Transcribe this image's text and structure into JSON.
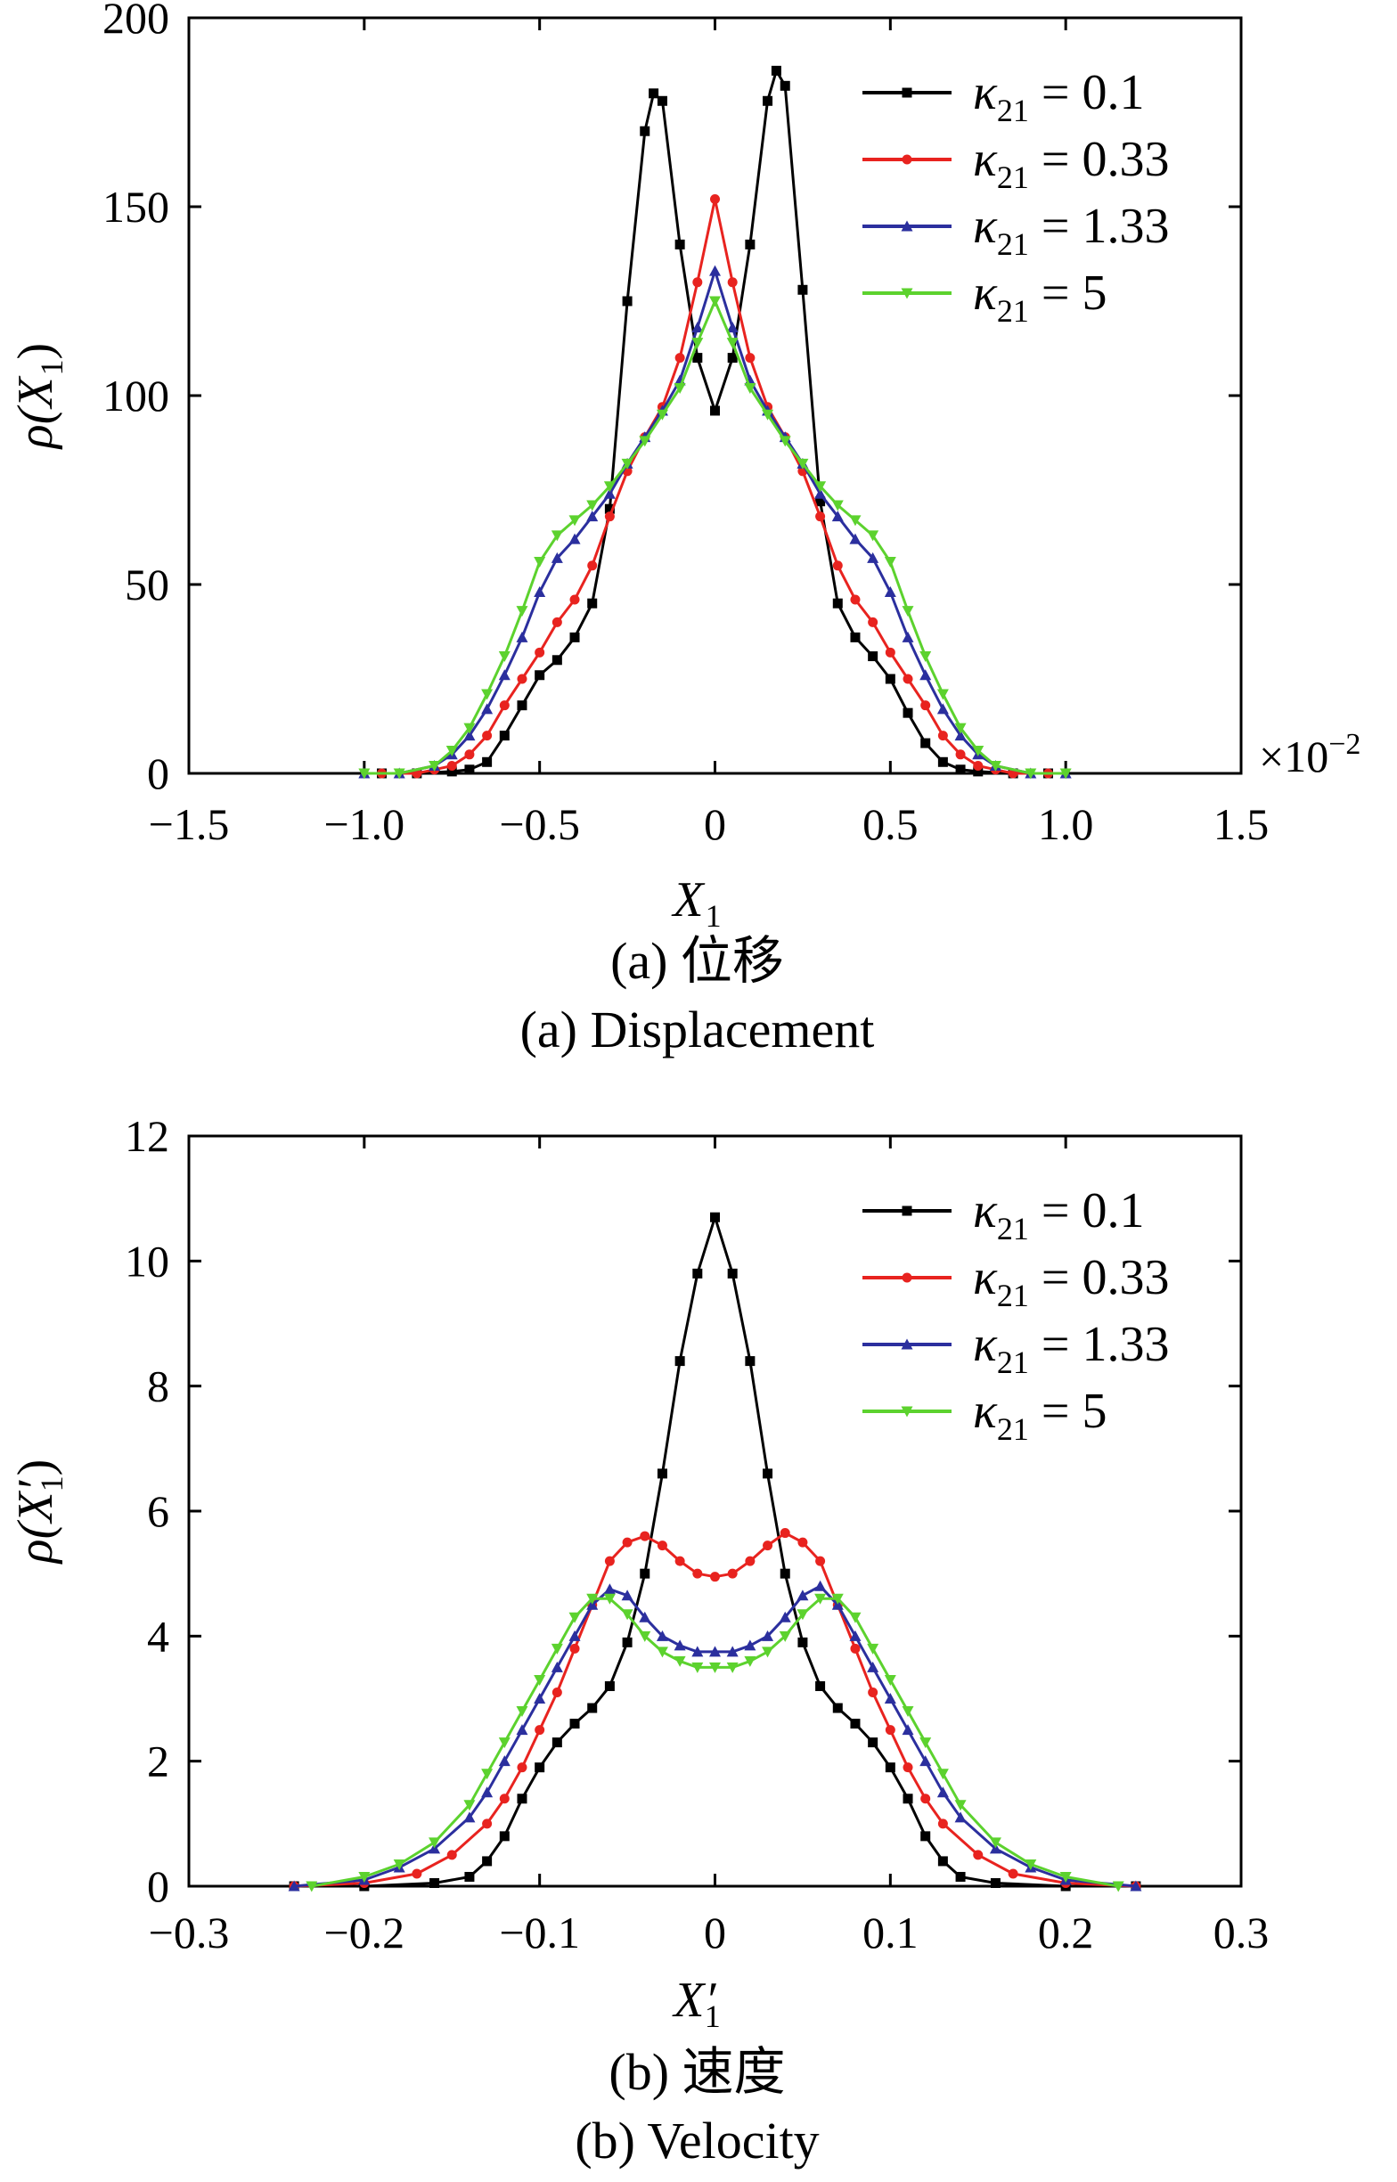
{
  "chart_data": [
    {
      "type": "line",
      "xlabel": "X",
      "xlabel_sub": "1",
      "xlabel_prime": false,
      "ylabel": "ρ(X",
      "ylabel_sub": "1",
      "ylabel_prime": false,
      "ylabel_close": ")",
      "xlim": [
        -1.5,
        1.5
      ],
      "ylim": [
        0,
        200
      ],
      "xticks": [
        -1.5,
        -1.0,
        -0.5,
        0,
        0.5,
        1.0,
        1.5
      ],
      "xtick_labels": [
        "−1.5",
        "−1.0",
        "−0.5",
        "0",
        "0.5",
        "1.0",
        "1.5"
      ],
      "yticks": [
        0,
        50,
        100,
        150,
        200
      ],
      "ytick_labels": [
        "0",
        "50",
        "100",
        "150",
        "200"
      ],
      "x_multiplier": "×10",
      "x_multiplier_exp": "−2",
      "legend_position": "top-right",
      "caption_cn": "(a)  位移",
      "caption_en": "(a)  Displacement",
      "series": [
        {
          "name": "κ",
          "name_sub": "21",
          "name_value": " = 0.1",
          "color": "#000000",
          "marker": "square",
          "x": [
            -0.95,
            -0.85,
            -0.75,
            -0.7,
            -0.65,
            -0.6,
            -0.55,
            -0.5,
            -0.45,
            -0.4,
            -0.35,
            -0.3,
            -0.25,
            -0.2,
            -0.175,
            -0.15,
            -0.1,
            -0.05,
            0,
            0.05,
            0.1,
            0.15,
            0.175,
            0.2,
            0.25,
            0.3,
            0.35,
            0.4,
            0.45,
            0.5,
            0.55,
            0.6,
            0.65,
            0.7,
            0.75,
            0.85,
            0.95
          ],
          "y": [
            0,
            0,
            0.5,
            1,
            3,
            10,
            18,
            26,
            30,
            36,
            45,
            70,
            125,
            170,
            180,
            178,
            140,
            110,
            96,
            110,
            140,
            178,
            186,
            182,
            128,
            72,
            45,
            36,
            31,
            25,
            16,
            8,
            3,
            1,
            0.5,
            0,
            0
          ]
        },
        {
          "name": "κ",
          "name_sub": "21",
          "name_value": " = 0.33",
          "color": "#e8231f",
          "marker": "circle",
          "x": [
            -0.95,
            -0.85,
            -0.8,
            -0.75,
            -0.7,
            -0.65,
            -0.6,
            -0.55,
            -0.5,
            -0.45,
            -0.4,
            -0.35,
            -0.3,
            -0.25,
            -0.2,
            -0.15,
            -0.1,
            -0.05,
            0,
            0.05,
            0.1,
            0.15,
            0.2,
            0.25,
            0.3,
            0.35,
            0.4,
            0.45,
            0.5,
            0.55,
            0.6,
            0.65,
            0.7,
            0.75,
            0.8,
            0.85,
            0.95
          ],
          "y": [
            0,
            0,
            1,
            2,
            5,
            10,
            18,
            25,
            32,
            40,
            46,
            55,
            68,
            80,
            89,
            97,
            110,
            130,
            152,
            130,
            110,
            97,
            89,
            80,
            68,
            55,
            46,
            40,
            32,
            25,
            18,
            10,
            5,
            2,
            1,
            0,
            0
          ]
        },
        {
          "name": "κ",
          "name_sub": "21",
          "name_value": " = 1.33",
          "color": "#2b2f9e",
          "marker": "triangle",
          "x": [
            -1.0,
            -0.9,
            -0.8,
            -0.75,
            -0.7,
            -0.65,
            -0.6,
            -0.55,
            -0.5,
            -0.45,
            -0.4,
            -0.35,
            -0.3,
            -0.25,
            -0.2,
            -0.15,
            -0.1,
            -0.05,
            0,
            0.05,
            0.1,
            0.15,
            0.2,
            0.25,
            0.3,
            0.35,
            0.4,
            0.45,
            0.5,
            0.55,
            0.6,
            0.65,
            0.7,
            0.75,
            0.8,
            0.9,
            1.0
          ],
          "y": [
            0,
            0,
            2,
            5,
            10,
            17,
            26,
            36,
            48,
            57,
            62,
            68,
            74,
            82,
            89,
            96,
            104,
            118,
            133,
            118,
            104,
            96,
            89,
            82,
            74,
            68,
            62,
            57,
            48,
            36,
            26,
            17,
            10,
            5,
            2,
            0,
            0
          ]
        },
        {
          "name": "κ",
          "name_sub": "21",
          "name_value": " = 5",
          "color": "#5cd22e",
          "marker": "triangle-down",
          "x": [
            -1.0,
            -0.9,
            -0.8,
            -0.75,
            -0.7,
            -0.65,
            -0.6,
            -0.55,
            -0.5,
            -0.45,
            -0.4,
            -0.35,
            -0.3,
            -0.25,
            -0.2,
            -0.15,
            -0.1,
            -0.05,
            0,
            0.05,
            0.1,
            0.15,
            0.2,
            0.25,
            0.3,
            0.35,
            0.4,
            0.45,
            0.5,
            0.55,
            0.6,
            0.65,
            0.7,
            0.75,
            0.8,
            0.9,
            1.0
          ],
          "y": [
            0,
            0,
            2,
            6,
            12,
            21,
            31,
            43,
            56,
            63,
            67,
            71,
            76,
            82,
            88,
            95,
            102,
            114,
            125,
            114,
            102,
            95,
            88,
            82,
            76,
            71,
            67,
            63,
            56,
            43,
            31,
            21,
            12,
            6,
            2,
            0,
            0
          ]
        }
      ]
    },
    {
      "type": "line",
      "xlabel": "X",
      "xlabel_sub": "1",
      "xlabel_prime": true,
      "ylabel": "ρ(X",
      "ylabel_sub": "1",
      "ylabel_prime": true,
      "ylabel_close": ")",
      "xlim": [
        -0.3,
        0.3
      ],
      "ylim": [
        0,
        12
      ],
      "xticks": [
        -0.3,
        -0.2,
        -0.1,
        0,
        0.1,
        0.2,
        0.3
      ],
      "xtick_labels": [
        "−0.3",
        "−0.2",
        "−0.1",
        "0",
        "0.1",
        "0.2",
        "0.3"
      ],
      "yticks": [
        0,
        2,
        4,
        6,
        8,
        10,
        12
      ],
      "ytick_labels": [
        "0",
        "2",
        "4",
        "6",
        "8",
        "10",
        "12"
      ],
      "x_multiplier": "",
      "x_multiplier_exp": "",
      "legend_position": "top-right",
      "caption_cn": "(b)  速度",
      "caption_en": "(b)  Velocity",
      "series": [
        {
          "name": "κ",
          "name_sub": "21",
          "name_value": " = 0.1",
          "color": "#000000",
          "marker": "square",
          "x": [
            -0.24,
            -0.2,
            -0.16,
            -0.14,
            -0.13,
            -0.12,
            -0.11,
            -0.1,
            -0.09,
            -0.08,
            -0.07,
            -0.06,
            -0.05,
            -0.04,
            -0.03,
            -0.02,
            -0.01,
            0,
            0.01,
            0.02,
            0.03,
            0.04,
            0.05,
            0.06,
            0.07,
            0.08,
            0.09,
            0.1,
            0.11,
            0.12,
            0.13,
            0.14,
            0.16,
            0.2,
            0.24
          ],
          "y": [
            0,
            0,
            0.05,
            0.15,
            0.4,
            0.8,
            1.4,
            1.9,
            2.3,
            2.6,
            2.85,
            3.2,
            3.9,
            5.0,
            6.6,
            8.4,
            9.8,
            10.7,
            9.8,
            8.4,
            6.6,
            5.0,
            3.9,
            3.2,
            2.85,
            2.6,
            2.3,
            1.9,
            1.4,
            0.8,
            0.4,
            0.15,
            0.05,
            0,
            0
          ]
        },
        {
          "name": "κ",
          "name_sub": "21",
          "name_value": " = 0.33",
          "color": "#e8231f",
          "marker": "circle",
          "x": [
            -0.24,
            -0.2,
            -0.17,
            -0.15,
            -0.13,
            -0.12,
            -0.11,
            -0.1,
            -0.09,
            -0.08,
            -0.07,
            -0.06,
            -0.05,
            -0.04,
            -0.03,
            -0.02,
            -0.01,
            0,
            0.01,
            0.02,
            0.03,
            0.04,
            0.05,
            0.06,
            0.07,
            0.08,
            0.09,
            0.1,
            0.11,
            0.12,
            0.13,
            0.15,
            0.17,
            0.2,
            0.24
          ],
          "y": [
            0,
            0.05,
            0.2,
            0.5,
            1.0,
            1.4,
            1.9,
            2.5,
            3.1,
            3.8,
            4.5,
            5.2,
            5.5,
            5.6,
            5.45,
            5.2,
            5.0,
            4.95,
            5.0,
            5.2,
            5.45,
            5.65,
            5.5,
            5.2,
            4.5,
            3.8,
            3.1,
            2.5,
            1.9,
            1.4,
            1.0,
            0.5,
            0.2,
            0.05,
            0
          ]
        },
        {
          "name": "κ",
          "name_sub": "21",
          "name_value": " = 1.33",
          "color": "#2b2f9e",
          "marker": "triangle",
          "x": [
            -0.24,
            -0.2,
            -0.18,
            -0.16,
            -0.14,
            -0.13,
            -0.12,
            -0.11,
            -0.1,
            -0.09,
            -0.08,
            -0.07,
            -0.06,
            -0.05,
            -0.04,
            -0.03,
            -0.02,
            -0.01,
            0,
            0.01,
            0.02,
            0.03,
            0.04,
            0.05,
            0.06,
            0.07,
            0.08,
            0.09,
            0.1,
            0.11,
            0.12,
            0.13,
            0.14,
            0.16,
            0.18,
            0.2,
            0.24
          ],
          "y": [
            0,
            0.1,
            0.3,
            0.6,
            1.1,
            1.5,
            2.0,
            2.5,
            3.0,
            3.5,
            4.0,
            4.5,
            4.75,
            4.65,
            4.3,
            4.0,
            3.85,
            3.75,
            3.75,
            3.75,
            3.85,
            4.0,
            4.3,
            4.65,
            4.8,
            4.5,
            4.0,
            3.5,
            3.0,
            2.5,
            2.0,
            1.5,
            1.1,
            0.6,
            0.3,
            0.1,
            0
          ]
        },
        {
          "name": "κ",
          "name_sub": "21",
          "name_value": " = 5",
          "color": "#5cd22e",
          "marker": "triangle-down",
          "x": [
            -0.23,
            -0.2,
            -0.18,
            -0.16,
            -0.14,
            -0.13,
            -0.12,
            -0.11,
            -0.1,
            -0.09,
            -0.08,
            -0.07,
            -0.06,
            -0.05,
            -0.04,
            -0.03,
            -0.02,
            -0.01,
            0,
            0.01,
            0.02,
            0.03,
            0.04,
            0.05,
            0.06,
            0.07,
            0.08,
            0.09,
            0.1,
            0.11,
            0.12,
            0.13,
            0.14,
            0.16,
            0.18,
            0.2,
            0.23
          ],
          "y": [
            0,
            0.15,
            0.35,
            0.7,
            1.3,
            1.8,
            2.3,
            2.8,
            3.3,
            3.8,
            4.3,
            4.6,
            4.6,
            4.35,
            4.0,
            3.75,
            3.6,
            3.5,
            3.5,
            3.5,
            3.6,
            3.75,
            4.0,
            4.35,
            4.6,
            4.6,
            4.3,
            3.8,
            3.3,
            2.8,
            2.3,
            1.8,
            1.3,
            0.7,
            0.35,
            0.15,
            0
          ]
        }
      ]
    }
  ]
}
